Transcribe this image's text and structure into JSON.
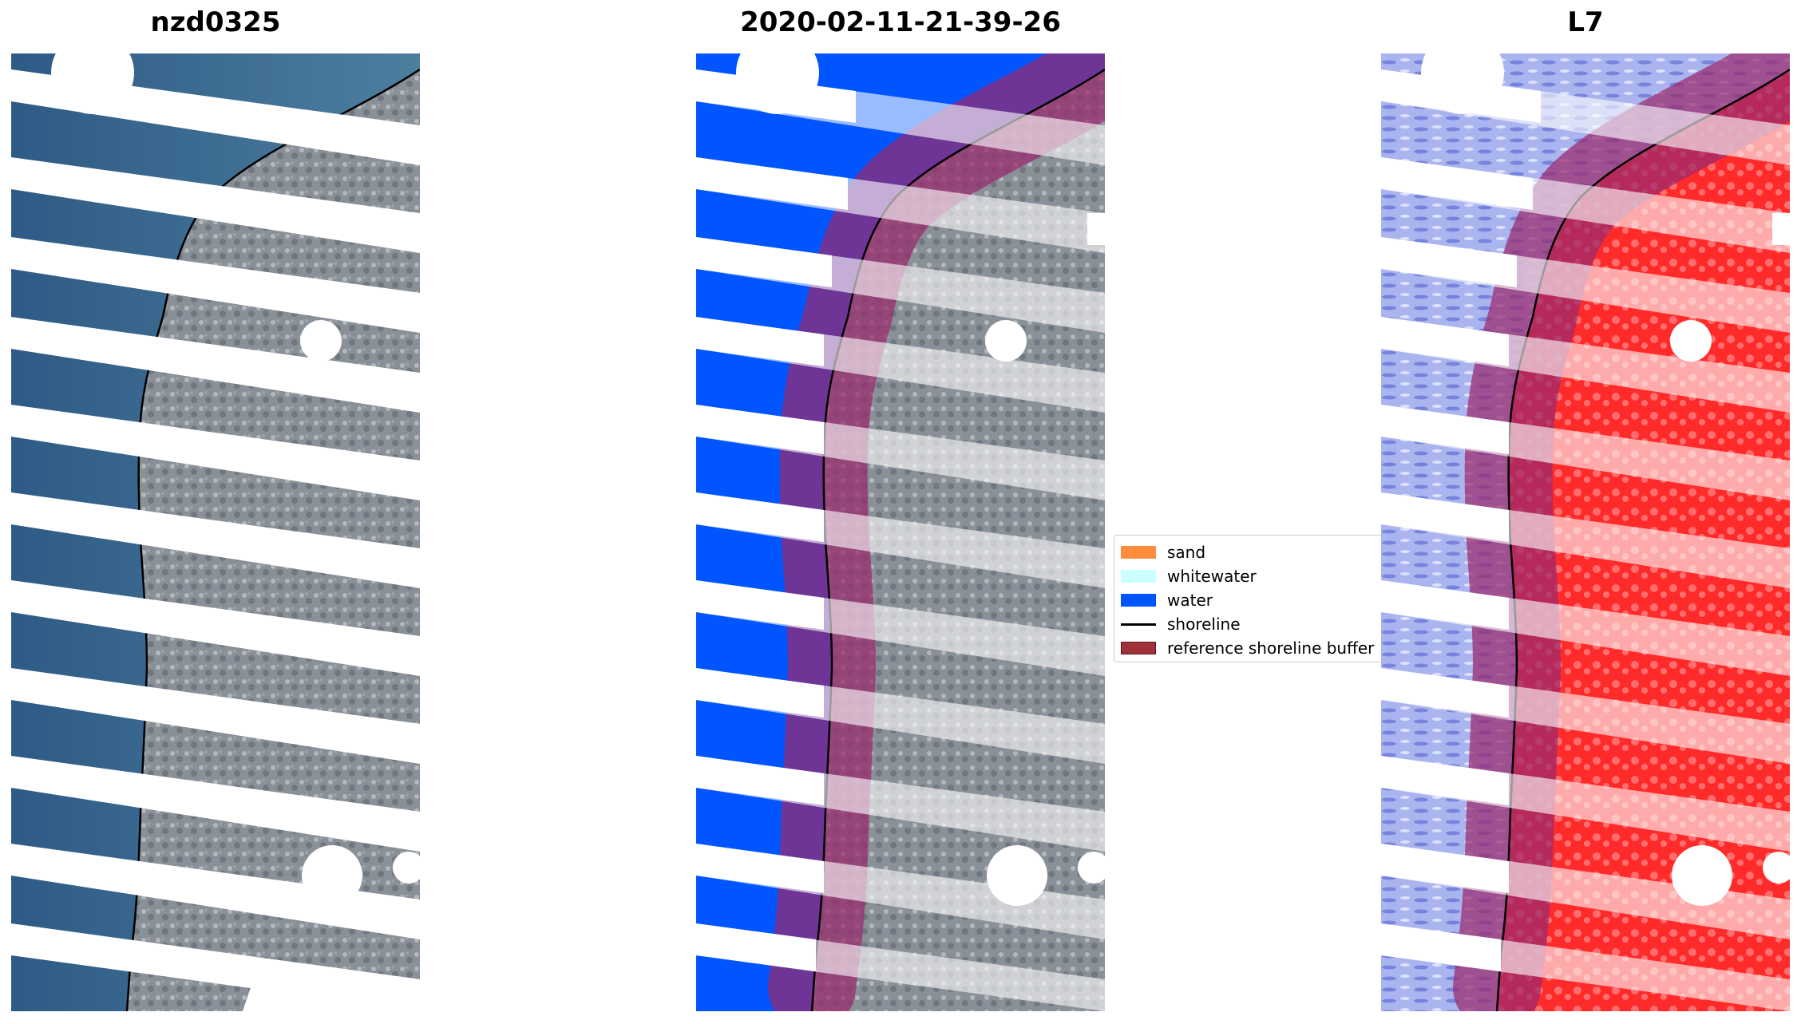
{
  "panels": [
    {
      "title": "nzd0325",
      "kind": "rgb"
    },
    {
      "title": "2020-02-11-21-39-26",
      "kind": "classified"
    },
    {
      "title": "L7",
      "kind": "index"
    }
  ],
  "legend": {
    "items": [
      {
        "label": "sand",
        "color": "#ff8c3c",
        "type": "patch"
      },
      {
        "label": "whitewater",
        "color": "#ccffff",
        "type": "patch"
      },
      {
        "label": "water",
        "color": "#0055ff",
        "type": "patch"
      },
      {
        "label": "shoreline",
        "color": "#000000",
        "type": "line"
      },
      {
        "label": "reference shoreline buffer",
        "color": "#a0303a",
        "type": "patch"
      }
    ]
  },
  "colors": {
    "sea_rgb": "#3d6b92",
    "land_rgb": "#8d949c",
    "water_class": "#0055ff",
    "index_water": "#8f9de8",
    "index_land": "#ff3b3b",
    "buffer": "#9a2a6e",
    "shoreline": "#000000"
  }
}
